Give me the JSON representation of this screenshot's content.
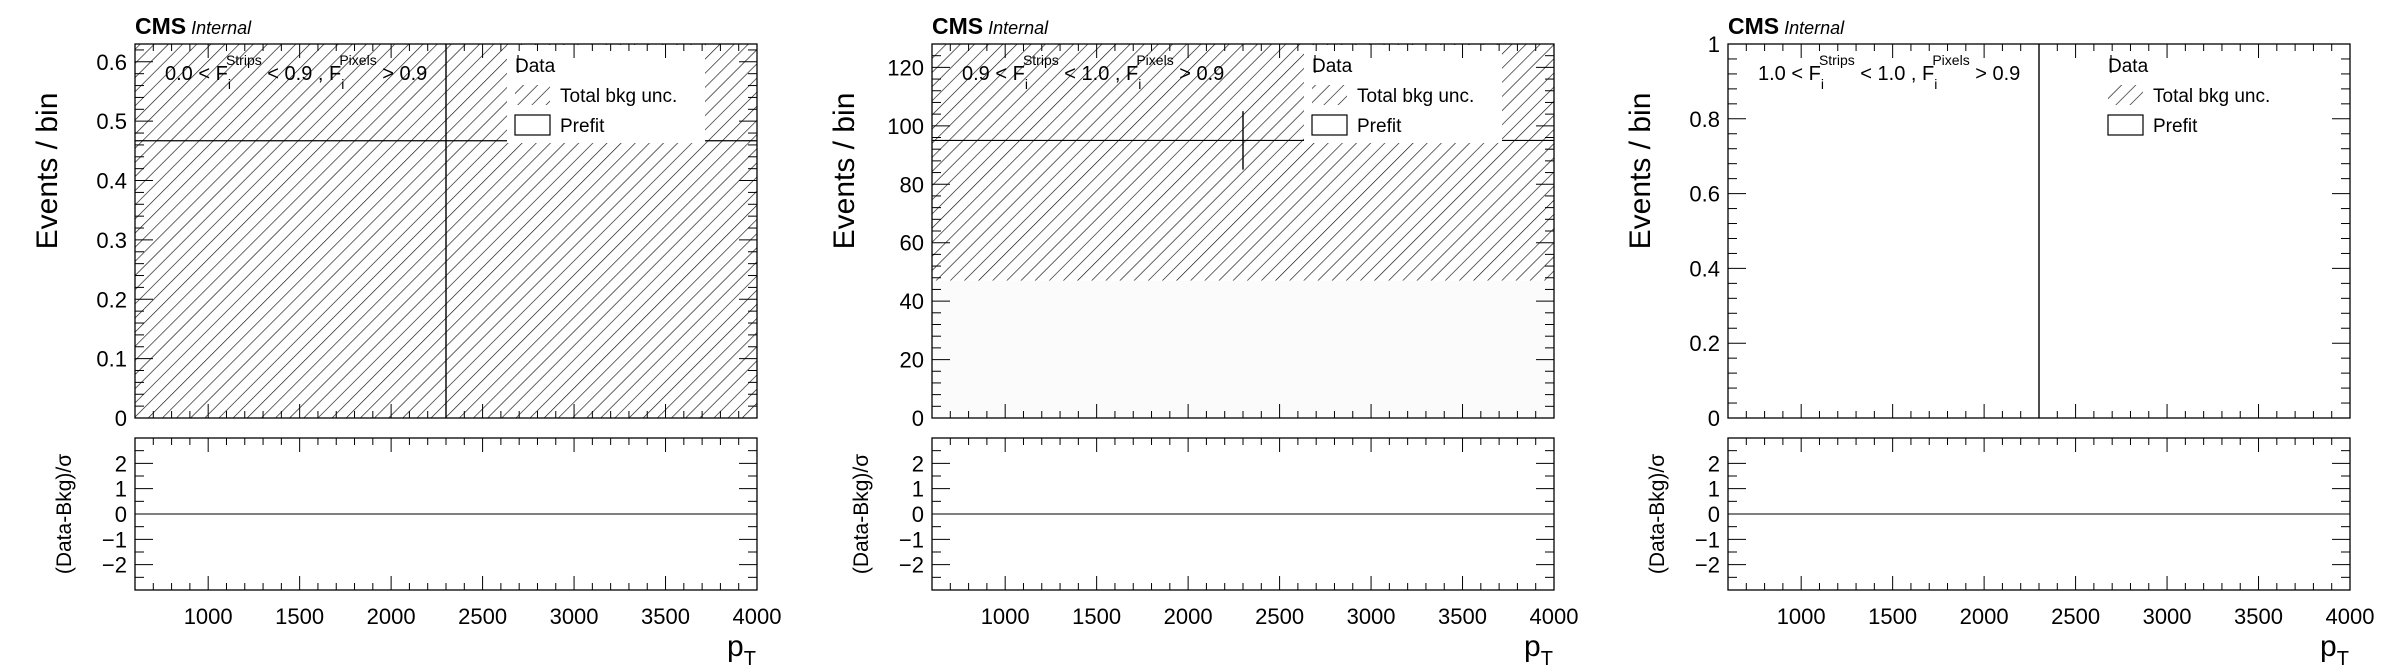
{
  "chart_data": [
    {
      "type": "bar",
      "cms_label": "CMS",
      "cms_sublabel": "Internal",
      "region_label": {
        "parts": [
          "0.0 < F",
          "i",
          "Strips",
          " < 0.9 , F",
          "i",
          "Pixels",
          " > 0.9"
        ]
      },
      "legend": {
        "data": "Data",
        "unc": "Total bkg unc.",
        "prefit": "Prefit"
      },
      "ylabel": "Events / bin",
      "ratio_ylabel": "(Data-Bkg)/σ",
      "xlabel": {
        "main": "p",
        "sub": "T"
      },
      "xlim": [
        600,
        4000
      ],
      "ylim": [
        0,
        0.63
      ],
      "ratio_ylim": [
        -3,
        3
      ],
      "x_ticks": [
        1000,
        1500,
        2000,
        2500,
        3000,
        3500,
        4000
      ],
      "y_ticks": [
        0,
        0.1,
        0.2,
        0.3,
        0.4,
        0.5,
        0.6
      ],
      "y_tick_labels": [
        "0",
        "0.1",
        "0.2",
        "0.3",
        "0.4",
        "0.5",
        "0.6"
      ],
      "ratio_ticks": [
        -2,
        -1,
        0,
        1,
        2
      ],
      "ratio_tick_labels": [
        "−2",
        "−1",
        "0",
        "1",
        "2"
      ],
      "bins": [
        {
          "x": [
            600,
            4000
          ],
          "prefit": 0.467,
          "unc_low": 0.0,
          "unc_high": 0.63
        }
      ],
      "data_points": [
        {
          "x": 2300,
          "y": 0.0,
          "yerr_high": 0.63
        }
      ],
      "pulls": []
    },
    {
      "type": "bar",
      "cms_label": "CMS",
      "cms_sublabel": "Internal",
      "region_label": {
        "parts": [
          "0.9 < F",
          "i",
          "Strips",
          " < 1.0 , F",
          "i",
          "Pixels",
          " > 0.9"
        ]
      },
      "legend": {
        "data": "Data",
        "unc": "Total bkg unc.",
        "prefit": "Prefit"
      },
      "ylabel": "Events / bin",
      "ratio_ylabel": "(Data-Bkg)/σ",
      "xlabel": {
        "main": "p",
        "sub": "T"
      },
      "xlim": [
        600,
        4000
      ],
      "ylim": [
        0,
        128
      ],
      "ratio_ylim": [
        -3,
        3
      ],
      "x_ticks": [
        1000,
        1500,
        2000,
        2500,
        3000,
        3500,
        4000
      ],
      "y_ticks": [
        0,
        20,
        40,
        60,
        80,
        100,
        120
      ],
      "y_tick_labels": [
        "0",
        "20",
        "40",
        "60",
        "80",
        "100",
        "120"
      ],
      "ratio_ticks": [
        -2,
        -1,
        0,
        1,
        2
      ],
      "ratio_tick_labels": [
        "−2",
        "−1",
        "0",
        "1",
        "2"
      ],
      "bins": [
        {
          "x": [
            600,
            4000
          ],
          "prefit": 95,
          "unc_low": 47,
          "unc_high": 128
        }
      ],
      "data_points": [
        {
          "x": 2300,
          "y": 95,
          "yerr_low": 10,
          "yerr_high": 10
        }
      ],
      "pulls": []
    },
    {
      "type": "bar",
      "cms_label": "CMS",
      "cms_sublabel": "Internal",
      "region_label": {
        "parts": [
          "1.0 < F",
          "i",
          "Strips",
          " < 1.0 , F",
          "i",
          "Pixels",
          " > 0.9"
        ]
      },
      "legend": {
        "data": "Data",
        "unc": "Total bkg unc.",
        "prefit": "Prefit"
      },
      "ylabel": "Events / bin",
      "ratio_ylabel": "(Data-Bkg)/σ",
      "xlabel": {
        "main": "p",
        "sub": "T"
      },
      "xlim": [
        600,
        4000
      ],
      "ylim": [
        0,
        1
      ],
      "ratio_ylim": [
        -3,
        3
      ],
      "x_ticks": [
        1000,
        1500,
        2000,
        2500,
        3000,
        3500,
        4000
      ],
      "y_ticks": [
        0,
        0.2,
        0.4,
        0.6,
        0.8,
        1
      ],
      "y_tick_labels": [
        "0",
        "0.2",
        "0.4",
        "0.6",
        "0.8",
        "1"
      ],
      "ratio_ticks": [
        -2,
        -1,
        0,
        1,
        2
      ],
      "ratio_tick_labels": [
        "−2",
        "−1",
        "0",
        "1",
        "2"
      ],
      "bins": [],
      "data_points": [
        {
          "x": 2300,
          "y": 0.0,
          "yerr_high": 1.0
        }
      ],
      "pulls": []
    }
  ]
}
